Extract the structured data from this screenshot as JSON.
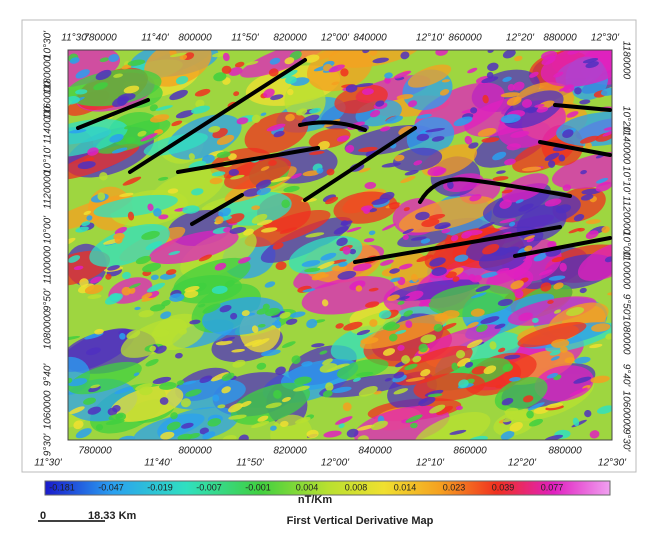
{
  "map": {
    "top_labels": [
      "11°30'",
      "780000",
      "11°40'",
      "800000",
      "11°50'",
      "820000",
      "12°00'",
      "840000",
      "12°10'",
      "860000",
      "12°20'",
      "880000",
      "12°30'"
    ],
    "bottom_labels": [
      "780000",
      "800000",
      "820000",
      "840000",
      "860000",
      "880000"
    ],
    "bottom_degree_labels": [
      "11°30'",
      "11°40'",
      "11°50'",
      "12°00'",
      "12°10'",
      "12°20'",
      "12°30'"
    ],
    "left_labels": [
      "10°30'",
      "1180000",
      "1160000",
      "1140000",
      "10°10'",
      "1120000",
      "10°00'",
      "1100000",
      "9°50'",
      "1080000",
      "9°40'",
      "1060000",
      "9°30'"
    ],
    "right_labels": [
      "1180000",
      "10°20'",
      "1140000",
      "10°10'",
      "1120000",
      "10°00'",
      "1100000",
      "9°50'",
      "1080000",
      "9°40'",
      "1060000",
      "9°30'"
    ],
    "colorbar": {
      "labels": [
        "-0.181",
        "-0.047",
        "-0.019",
        "-0.007",
        "-0.001",
        "0.004",
        "0.008",
        "0.014",
        "0.023",
        "0.039",
        "0.077"
      ],
      "unit": "nT/Km"
    },
    "scale_bar": {
      "start": "0",
      "end": "18.33 Km"
    },
    "title": "First Vertical Derivative Map"
  }
}
